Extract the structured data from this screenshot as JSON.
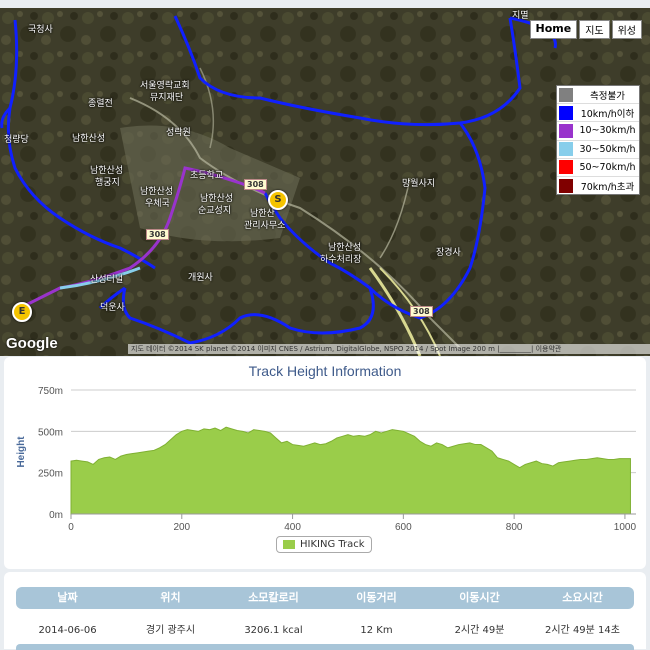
{
  "map": {
    "buttons": {
      "home": "Home",
      "map": "지도",
      "satellite": "위성"
    },
    "labels": [
      {
        "text": "국청사",
        "cls": "a1"
      },
      {
        "text": "지멸",
        "cls": "a2"
      },
      {
        "text": "서울영락교회",
        "cls": "a3"
      },
      {
        "text": "뮤지재단",
        "cls": "a4"
      },
      {
        "text": "종렬전",
        "cls": "a5"
      },
      {
        "text": "남한산성",
        "cls": "a6"
      },
      {
        "text": "성락원",
        "cls": "a7"
      },
      {
        "text": "남한산성",
        "cls": "a8"
      },
      {
        "text": "행궁지",
        "cls": "a9"
      },
      {
        "text": "초등학교",
        "cls": "a10"
      },
      {
        "text": "남한산성",
        "cls": "a11"
      },
      {
        "text": "우체국",
        "cls": "a12"
      },
      {
        "text": "남한산성",
        "cls": "a13"
      },
      {
        "text": "순교성지",
        "cls": "a14"
      },
      {
        "text": "남한산",
        "cls": "a15"
      },
      {
        "text": "관리사무소",
        "cls": "a16"
      },
      {
        "text": "망월사지",
        "cls": "a17"
      },
      {
        "text": "남한산성",
        "cls": "a18"
      },
      {
        "text": "하수처리장",
        "cls": "a19"
      },
      {
        "text": "장경사",
        "cls": "a20"
      },
      {
        "text": "개원사",
        "cls": "a21"
      },
      {
        "text": "산성터널",
        "cls": "a22"
      },
      {
        "text": "덕운사",
        "cls": "a23"
      },
      {
        "text": "청량당",
        "cls": "a24"
      }
    ],
    "road_shields": [
      "308",
      "308",
      "308"
    ],
    "start_marker": "S",
    "end_marker": "E",
    "google": "Google",
    "attribution": "지도 데이터 ©2014 SK planet ©2014 이미지 CNES / Astrium, DigitalGlobe, NSPO 2014 / Spot Image   200 m |_________|   이용약관",
    "speed_legend": [
      {
        "label": "측정불가",
        "color": "#808080"
      },
      {
        "label": "10km/h이하",
        "color": "#0000ff"
      },
      {
        "label": "10~30km/h",
        "color": "#9933cc"
      },
      {
        "label": "30~50km/h",
        "color": "#87ceeb"
      },
      {
        "label": "50~70km/h",
        "color": "#ff0000"
      },
      {
        "label": "70km/h초과",
        "color": "#800000"
      }
    ]
  },
  "chart_title": "Track Height Information",
  "chart_data": {
    "type": "area",
    "title": "Track Height Information",
    "ylabel": "Height",
    "xlabel": "",
    "ylim": [
      0,
      750
    ],
    "xlim": [
      0,
      1020
    ],
    "yticks": [
      "0m",
      "250m",
      "500m",
      "750m"
    ],
    "ytick_values": [
      0,
      250,
      500,
      750
    ],
    "xticks": [
      0,
      200,
      400,
      600,
      800,
      1000
    ],
    "grid": true,
    "legend": "bottom-center",
    "series": [
      {
        "name": "HIKING Track",
        "color": "#9acd4a",
        "x": [
          0,
          10,
          20,
          30,
          40,
          50,
          60,
          70,
          80,
          90,
          100,
          110,
          120,
          130,
          140,
          150,
          160,
          170,
          180,
          190,
          200,
          210,
          220,
          230,
          240,
          250,
          260,
          270,
          280,
          290,
          300,
          310,
          320,
          330,
          340,
          350,
          360,
          370,
          380,
          390,
          400,
          410,
          420,
          430,
          440,
          450,
          460,
          470,
          480,
          490,
          500,
          510,
          520,
          530,
          540,
          550,
          560,
          570,
          580,
          590,
          600,
          610,
          620,
          630,
          640,
          650,
          660,
          670,
          680,
          690,
          700,
          710,
          720,
          730,
          740,
          750,
          760,
          770,
          780,
          790,
          800,
          810,
          820,
          830,
          840,
          850,
          860,
          870,
          880,
          890,
          900,
          910,
          920,
          930,
          940,
          950,
          960,
          970,
          980,
          990,
          1000,
          1010
        ],
        "y": [
          320,
          325,
          320,
          315,
          300,
          330,
          340,
          345,
          330,
          350,
          360,
          365,
          370,
          375,
          380,
          385,
          400,
          420,
          450,
          480,
          500,
          510,
          505,
          500,
          515,
          510,
          520,
          505,
          525,
          515,
          505,
          500,
          490,
          510,
          505,
          500,
          490,
          460,
          430,
          440,
          420,
          415,
          410,
          420,
          430,
          420,
          425,
          440,
          460,
          470,
          480,
          470,
          475,
          470,
          480,
          500,
          490,
          500,
          510,
          505,
          500,
          485,
          470,
          440,
          420,
          410,
          430,
          420,
          400,
          410,
          420,
          425,
          430,
          420,
          420,
          400,
          380,
          340,
          330,
          320,
          300,
          280,
          300,
          310,
          320,
          305,
          300,
          290,
          310,
          315,
          320,
          325,
          330,
          330,
          335,
          340,
          335,
          330,
          330,
          335,
          335,
          335
        ]
      }
    ]
  },
  "legend_label": "HIKING Track",
  "table": {
    "headers": [
      "날짜",
      "위치",
      "소모칼로리",
      "이동거리",
      "이동시간",
      "소요시간"
    ],
    "row": [
      "2014-06-06",
      "경기 광주시",
      "3206.1 kcal",
      "12 Km",
      "2시간 49분",
      "2시간 49분 14초"
    ]
  }
}
